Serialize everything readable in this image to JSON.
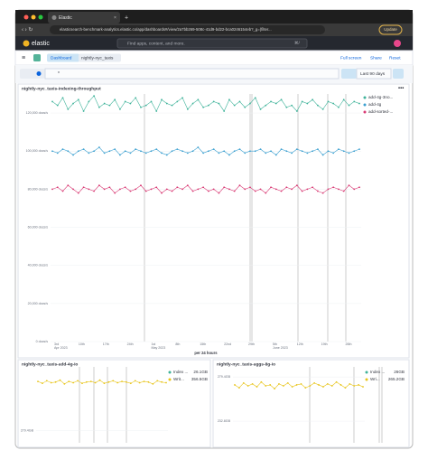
{
  "browser": {
    "tab_title": "Elastic",
    "url": "elasticsearch-benchmark-analytics.elastic.co/app/dashboards#/view/2a7bb269-508c-41d9-bd22-bca0246154eb?_g=(filter...",
    "update_button": "Update"
  },
  "header": {
    "logo": "elastic",
    "search_placeholder": "Find apps, content, and more.",
    "shortcut": "⌘/"
  },
  "breadcrumbs": [
    "Dashboard",
    "nightly-nyc_taxis"
  ],
  "actions": [
    "Full screen",
    "Share",
    "Reset"
  ],
  "query": {
    "text": "*",
    "time_range": "Last 90 days"
  },
  "chart_data": [
    {
      "type": "line",
      "title": "nightly-nyc_taxis-indexing-throughput",
      "ylim": [
        0,
        130000
      ],
      "yticks": [
        {
          "value": 0,
          "label": "0 docs/s"
        },
        {
          "value": 20000,
          "label": "20,000 docs/s"
        },
        {
          "value": 40000,
          "label": "40,000 docs/s"
        },
        {
          "value": 60000,
          "label": "60,000 docs/s"
        },
        {
          "value": 80000,
          "label": "80,000 docs/s"
        },
        {
          "value": 100000,
          "label": "100,000 docs/s"
        },
        {
          "value": 120000,
          "label": "120,000 docs/s"
        }
      ],
      "xticks": [
        "3rd",
        "10th",
        "17th",
        "24th",
        "1st",
        "8th",
        "15th",
        "22nd",
        "29th",
        "5th",
        "12th",
        "19th",
        "26th"
      ],
      "xtick_sublabels": [
        "Apr 2023",
        null,
        null,
        null,
        "May 2023",
        null,
        null,
        null,
        null,
        "June 2023",
        null,
        null,
        null
      ],
      "x_label": "per 24 hours",
      "series": [
        {
          "name": "add-4g-3no...",
          "color": "#3fb39a",
          "values": [
            126000,
            124000,
            128000,
            122000,
            125000,
            127000,
            121000,
            126000,
            129000,
            123000,
            125000,
            124000,
            127000,
            122000,
            126000,
            125000,
            128000,
            123000,
            124000,
            126000,
            121000,
            127000,
            125000,
            124000,
            126000,
            128000,
            122000,
            125000,
            127000,
            123000,
            124000,
            126000,
            125000,
            121000,
            127000,
            124000,
            126000,
            123000,
            125000,
            128000,
            122000,
            124000,
            126000,
            125000,
            127000,
            123000,
            124000,
            121000,
            126000,
            125000,
            127000,
            124000,
            122000,
            126000,
            125000,
            123000,
            127000,
            124000,
            126000,
            125000
          ]
        },
        {
          "name": "add-4g",
          "color": "#3a9fd0",
          "values": [
            100000,
            99000,
            101000,
            100000,
            98000,
            100000,
            101000,
            99000,
            100000,
            102000,
            99000,
            100000,
            101000,
            98000,
            100000,
            99000,
            101000,
            100000,
            99000,
            100000,
            101000,
            99000,
            98000,
            100000,
            101000,
            100000,
            99000,
            100000,
            102000,
            99000,
            100000,
            101000,
            99000,
            100000,
            98000,
            100000,
            101000,
            99000,
            100000,
            100000,
            101000,
            99000,
            100000,
            98000,
            101000,
            100000,
            99000,
            101000,
            100000,
            99000,
            100000,
            101000,
            98000,
            100000,
            99000,
            101000,
            100000,
            99000,
            100000,
            101000
          ]
        },
        {
          "name": "add-sorted-...",
          "color": "#d93a74",
          "values": [
            80000,
            81000,
            79000,
            82000,
            80000,
            78000,
            81000,
            80000,
            79000,
            82000,
            80000,
            81000,
            78000,
            80000,
            81000,
            79000,
            80000,
            82000,
            79000,
            80000,
            81000,
            78000,
            80000,
            79000,
            81000,
            80000,
            82000,
            79000,
            80000,
            81000,
            79000,
            80000,
            78000,
            81000,
            80000,
            79000,
            82000,
            80000,
            81000,
            79000,
            80000,
            78000,
            81000,
            80000,
            79000,
            81000,
            80000,
            82000,
            79000,
            80000,
            81000,
            79000,
            78000,
            80000,
            81000,
            80000,
            79000,
            82000,
            80000,
            81000
          ]
        }
      ]
    },
    {
      "type": "line",
      "title": "nightly-nyc_taxis-add-4g-io",
      "ylim": [
        260,
        380
      ],
      "yticks": [
        {
          "value": 279.4,
          "label": "279.4GB"
        }
      ],
      "legend": [
        {
          "name": "Index ...",
          "value_label": "26.1GB",
          "color": "#3fb39a"
        },
        {
          "name": "Writ...",
          "value_label": "356.5GB",
          "color": "#e8c51c"
        }
      ],
      "series": [
        {
          "name": "Writ...",
          "color": "#e8c51c",
          "values": [
            357,
            354,
            358,
            355,
            356,
            359,
            353,
            357,
            355,
            358,
            354,
            356,
            357,
            355,
            359,
            354,
            356,
            358,
            355,
            357,
            356,
            354,
            358,
            355,
            357,
            356,
            353,
            358,
            356,
            355
          ]
        }
      ]
    },
    {
      "type": "line",
      "title": "nightly-nyc_taxis-aggs-8g-io",
      "ylim": [
        210,
        290
      ],
      "yticks": [
        {
          "value": 279.4,
          "label": "279.4GB"
        },
        {
          "value": 232.8,
          "label": "232.8GB"
        }
      ],
      "legend": [
        {
          "name": "Index ...",
          "value_label": "26GB",
          "color": "#3fb39a"
        },
        {
          "name": "Wri...",
          "value_label": "265.2GB",
          "color": "#e8c51c"
        }
      ],
      "series": [
        {
          "name": "Wri...",
          "color": "#e8c51c",
          "values": [
            271,
            268,
            273,
            270,
            272,
            269,
            274,
            270,
            271,
            267,
            272,
            270,
            273,
            269,
            271,
            272,
            268,
            270,
            273,
            271,
            269,
            272,
            270,
            274,
            271,
            268,
            272,
            270,
            271,
            269
          ]
        }
      ]
    }
  ]
}
